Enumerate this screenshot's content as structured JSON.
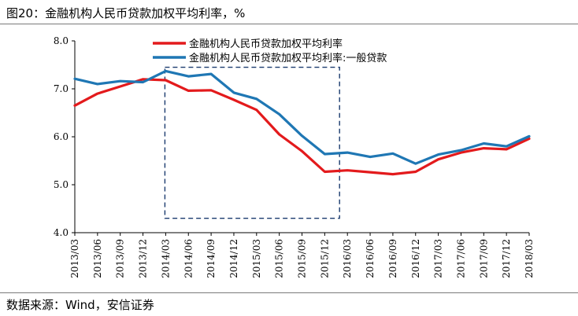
{
  "figure_title": "图20：金融机构人民币贷款加权平均利率，%",
  "source_note": "数据来源：Wind，安信证券",
  "chart_data": {
    "type": "line",
    "title": "",
    "xlabel": "",
    "ylabel": "",
    "categories": [
      "2013/03",
      "2013/06",
      "2013/09",
      "2013/12",
      "2014/03",
      "2014/06",
      "2014/09",
      "2014/12",
      "2015/03",
      "2015/06",
      "2015/09",
      "2015/12",
      "2016/03",
      "2016/06",
      "2016/09",
      "2016/12",
      "2017/03",
      "2017/06",
      "2017/09",
      "2017/12",
      "2018/03"
    ],
    "ylim": [
      4.0,
      8.0
    ],
    "yticks": [
      "4.0",
      "5.0",
      "6.0",
      "7.0",
      "8.0"
    ],
    "legend_position": "top-center",
    "grid": false,
    "series": [
      {
        "name": "金融机构人民币贷款加权平均利率",
        "color": "#e31a1c",
        "values": [
          6.65,
          6.9,
          7.05,
          7.2,
          7.18,
          6.96,
          6.97,
          6.77,
          6.56,
          6.05,
          5.7,
          5.27,
          5.3,
          5.26,
          5.22,
          5.27,
          5.53,
          5.67,
          5.76,
          5.74,
          5.96
        ]
      },
      {
        "name": "金融机构人民币贷款加权平均利率:一般贷款",
        "color": "#1f77b4",
        "values": [
          7.21,
          7.1,
          7.16,
          7.14,
          7.37,
          7.26,
          7.31,
          6.92,
          6.79,
          6.47,
          6.02,
          5.64,
          5.67,
          5.58,
          5.65,
          5.44,
          5.63,
          5.72,
          5.86,
          5.8,
          6.01
        ]
      }
    ],
    "highlight_box": {
      "x_from": "2014/03",
      "x_to": "2016/03",
      "y_from": 4.3,
      "y_to": 7.45,
      "style": "dashed"
    }
  }
}
